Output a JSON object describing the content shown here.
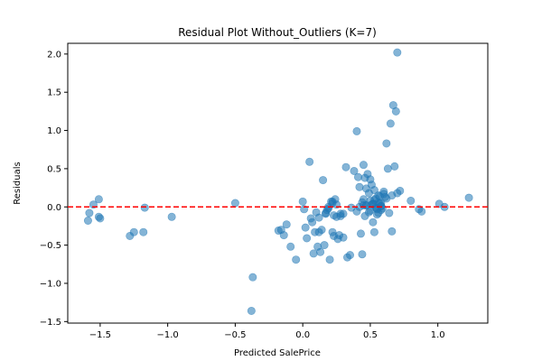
{
  "chart_data": {
    "type": "scatter",
    "title": "Residual Plot Without_Outliers (K=7)",
    "xlabel": "Predicted SalePrice",
    "ylabel": "Residuals",
    "xlim": [
      -1.74,
      1.37
    ],
    "ylim": [
      -1.52,
      2.14
    ],
    "xticks": [
      -1.5,
      -1.0,
      -0.5,
      0.0,
      0.5,
      1.0
    ],
    "xtick_labels": [
      "−1.5",
      "−1.0",
      "−0.5",
      "0.0",
      "0.5",
      "1.0"
    ],
    "yticks": [
      -1.5,
      -1.0,
      -0.5,
      0.0,
      0.5,
      1.0,
      1.5,
      2.0
    ],
    "ytick_labels": [
      "−1.5",
      "−1.0",
      "−0.5",
      "0.0",
      "0.5",
      "1.0",
      "1.5",
      "2.0"
    ],
    "grid": false,
    "point_color": "#1f77b4",
    "reference_line": {
      "y": 0,
      "color": "#ff0000",
      "style": "dashed"
    },
    "x": [
      -1.58,
      -1.59,
      -1.55,
      -1.51,
      -1.51,
      -1.5,
      -1.28,
      -1.25,
      -1.18,
      -1.17,
      -0.97,
      -0.5,
      -0.38,
      -0.37,
      -0.18,
      -0.16,
      -0.14,
      -0.12,
      -0.09,
      -0.05,
      0.0,
      0.01,
      0.02,
      0.03,
      0.05,
      0.06,
      0.07,
      0.08,
      0.09,
      0.1,
      0.11,
      0.12,
      0.13,
      0.15,
      0.16,
      0.17,
      0.18,
      0.19,
      0.2,
      0.21,
      0.22,
      0.22,
      0.23,
      0.24,
      0.25,
      0.26,
      0.27,
      0.28,
      0.3,
      0.32,
      0.33,
      0.35,
      0.38,
      0.4,
      0.41,
      0.42,
      0.43,
      0.44,
      0.45,
      0.46,
      0.47,
      0.48,
      0.49,
      0.5,
      0.5,
      0.51,
      0.52,
      0.52,
      0.53,
      0.53,
      0.54,
      0.55,
      0.56,
      0.57,
      0.58,
      0.59,
      0.6,
      0.61,
      0.62,
      0.63,
      0.64,
      0.65,
      0.66,
      0.67,
      0.68,
      0.69,
      0.7,
      0.72,
      0.8,
      0.86,
      0.88,
      1.01,
      1.05,
      1.23,
      0.46,
      0.47,
      0.5,
      0.54,
      0.56,
      0.58,
      0.6,
      0.45,
      0.47,
      0.49,
      0.51,
      0.53,
      0.55,
      0.57,
      0.42,
      0.44,
      0.56,
      0.58,
      0.22,
      0.25,
      0.28,
      0.12,
      0.14,
      0.17,
      0.19,
      0.23,
      0.3,
      0.36,
      0.4,
      0.45,
      0.52,
      0.55,
      0.58,
      0.62,
      0.66,
      0.7
    ],
    "y": [
      -0.08,
      -0.18,
      0.03,
      0.1,
      -0.13,
      -0.15,
      -0.38,
      -0.33,
      -0.33,
      -0.01,
      -0.13,
      0.05,
      -1.36,
      -0.92,
      -0.31,
      -0.3,
      -0.37,
      -0.23,
      -0.52,
      -0.69,
      0.07,
      -0.03,
      -0.27,
      -0.41,
      0.59,
      -0.15,
      -0.2,
      -0.61,
      -0.33,
      -0.07,
      -0.52,
      -0.33,
      -0.59,
      0.35,
      -0.5,
      -0.09,
      -0.04,
      0.0,
      -0.69,
      0.07,
      -0.33,
      0.05,
      -0.38,
      0.1,
      -0.13,
      -0.42,
      -0.37,
      -0.09,
      -0.4,
      0.52,
      -0.66,
      -0.63,
      0.47,
      0.99,
      0.39,
      0.26,
      -0.35,
      -0.62,
      0.55,
      0.38,
      0.24,
      0.43,
      0.18,
      0.36,
      -0.05,
      0.29,
      0.04,
      -0.2,
      -0.33,
      0.22,
      0.11,
      -0.1,
      0.15,
      0.05,
      0.01,
      -0.02,
      0.2,
      0.13,
      0.83,
      0.5,
      -0.08,
      1.09,
      -0.32,
      1.33,
      0.53,
      1.25,
      2.02,
      0.21,
      0.08,
      -0.03,
      -0.06,
      0.04,
      0.0,
      0.12,
      -0.12,
      0.02,
      0.08,
      -0.01,
      0.06,
      -0.04,
      0.17,
      0.1,
      0.02,
      -0.07,
      0.03,
      0.09,
      -0.02,
      0.14,
      0.0,
      0.06,
      -0.08,
      0.01,
      0.07,
      0.03,
      -0.12,
      -0.14,
      -0.3,
      -0.08,
      -0.02,
      -0.11,
      -0.09,
      -0.01,
      -0.06,
      0.02,
      0.04,
      -0.03,
      0.05,
      0.11,
      0.15,
      0.18
    ]
  }
}
